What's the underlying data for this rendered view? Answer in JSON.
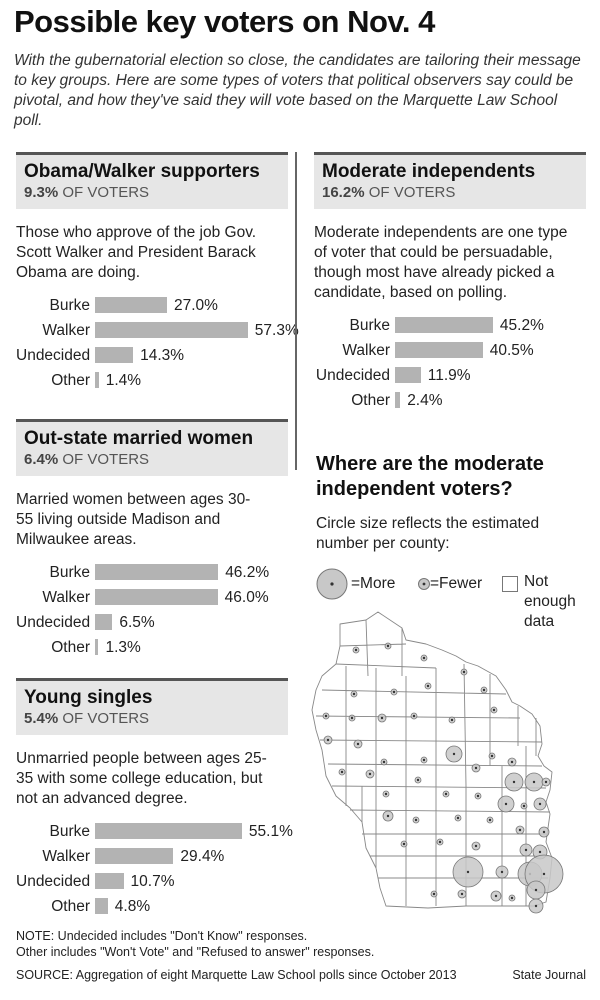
{
  "title": "Possible key voters on Nov. 4",
  "intro": "With the gubernatorial election so close, the candidates are tailoring their message to key groups. Here are some types of voters that political observers say could be pivotal, and how they've said they will vote based on the Marquette Law School poll.",
  "colors": {
    "bar": "#b3b3b3",
    "header_bg": "#e6e6e6",
    "circle": "#c8c8c8"
  },
  "groups": [
    {
      "name": "Obama/Walker supporters",
      "share_value": "9.3%",
      "share_suffix": "OF VOTERS",
      "description": "Those who approve of the job Gov. Scott Walker and President Barack Obama are doing."
    },
    {
      "name": "Out-state married women",
      "share_value": "6.4%",
      "share_suffix": "OF VOTERS",
      "description": "Married women between ages 30-55 living outside Madison and Milwaukee areas."
    },
    {
      "name": "Young singles",
      "share_value": "5.4%",
      "share_suffix": "OF VOTERS",
      "description": "Unmarried people between ages 25-35 with some college education, but not an advanced degree."
    },
    {
      "name": "Moderate independents",
      "share_value": "16.2%",
      "share_suffix": "OF VOTERS",
      "description": "Moderate independents are one type of voter that could be persuadable, though most have already picked a candidate, based on polling."
    }
  ],
  "chart_data": [
    {
      "type": "bar",
      "orientation": "horizontal",
      "title": "Obama/Walker supporters",
      "categories": [
        "Burke",
        "Walker",
        "Undecided",
        "Other"
      ],
      "values": [
        27.0,
        57.3,
        14.3,
        1.4
      ],
      "value_labels": [
        "27.0%",
        "57.3%",
        "14.3%",
        "1.4%"
      ]
    },
    {
      "type": "bar",
      "orientation": "horizontal",
      "title": "Out-state married women",
      "categories": [
        "Burke",
        "Walker",
        "Undecided",
        "Other"
      ],
      "values": [
        46.2,
        46.0,
        6.5,
        1.3
      ],
      "value_labels": [
        "46.2%",
        "46.0%",
        "6.5%",
        "1.3%"
      ]
    },
    {
      "type": "bar",
      "orientation": "horizontal",
      "title": "Young singles",
      "categories": [
        "Burke",
        "Walker",
        "Undecided",
        "Other"
      ],
      "values": [
        55.1,
        29.4,
        10.7,
        4.8
      ],
      "value_labels": [
        "55.1%",
        "29.4%",
        "10.7%",
        "4.8%"
      ]
    },
    {
      "type": "bar",
      "orientation": "horizontal",
      "title": "Moderate independents",
      "categories": [
        "Burke",
        "Walker",
        "Undecided",
        "Other"
      ],
      "values": [
        45.2,
        40.5,
        11.9,
        2.4
      ],
      "value_labels": [
        "45.2%",
        "40.5%",
        "11.9%",
        "2.4%"
      ]
    }
  ],
  "map": {
    "heading": "Where are the moderate independent voters?",
    "subhead": "Circle size reflects the estimated number per county:",
    "legend": {
      "more": "=More",
      "fewer": "=Fewer",
      "no_data": "Not enough data"
    }
  },
  "notes": {
    "line1": "NOTE: Undecided includes \"Don't Know\" responses.",
    "line2": "Other includes \"Won't Vote\" and \"Refused to answer\" responses."
  },
  "source": "SOURCE: Aggregation of eight Marquette Law School polls since October 2013",
  "credit": "State Journal"
}
